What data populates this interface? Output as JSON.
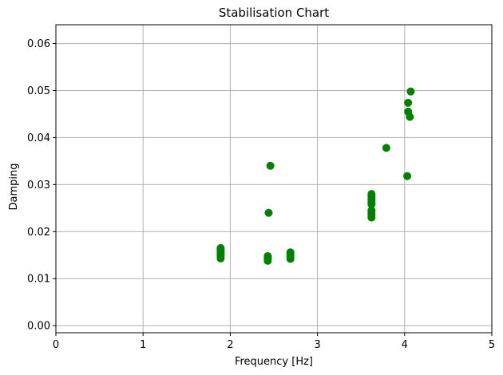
{
  "chart_data": {
    "type": "scatter",
    "title": "Stabilisation Chart",
    "xlabel": "Frequency [Hz]",
    "ylabel": "Damping",
    "xlim": [
      0,
      5
    ],
    "ylim": [
      -0.0015,
      0.064
    ],
    "xticks": [
      0,
      1,
      2,
      3,
      4,
      5
    ],
    "xtick_labels": [
      "0",
      "1",
      "2",
      "3",
      "4",
      "5"
    ],
    "yticks": [
      0.0,
      0.01,
      0.02,
      0.03,
      0.04,
      0.05,
      0.06
    ],
    "ytick_labels": [
      "0.00",
      "0.01",
      "0.02",
      "0.03",
      "0.04",
      "0.05",
      "0.06"
    ],
    "grid": true,
    "marker_color": "#008000",
    "series": [
      {
        "x": [
          1.89,
          1.89,
          1.89,
          1.89,
          1.89,
          1.89,
          1.89,
          2.43,
          2.43,
          2.43,
          2.43,
          2.43,
          2.44,
          2.46,
          2.69,
          2.69,
          2.69,
          2.69,
          2.69,
          3.62,
          3.62,
          3.62,
          3.62,
          3.62,
          3.62,
          3.62,
          3.62,
          3.62,
          3.62,
          3.79,
          4.03,
          4.04,
          4.04,
          4.06,
          4.07
        ],
        "y": [
          0.0143,
          0.0148,
          0.0152,
          0.0156,
          0.016,
          0.0163,
          0.0165,
          0.0138,
          0.0143,
          0.0145,
          0.0147,
          0.0148,
          0.024,
          0.034,
          0.0142,
          0.0146,
          0.0149,
          0.0153,
          0.0156,
          0.023,
          0.0235,
          0.024,
          0.0245,
          0.0258,
          0.0262,
          0.0268,
          0.0272,
          0.0276,
          0.028,
          0.0378,
          0.0318,
          0.0474,
          0.0455,
          0.0444,
          0.0498
        ]
      }
    ]
  }
}
